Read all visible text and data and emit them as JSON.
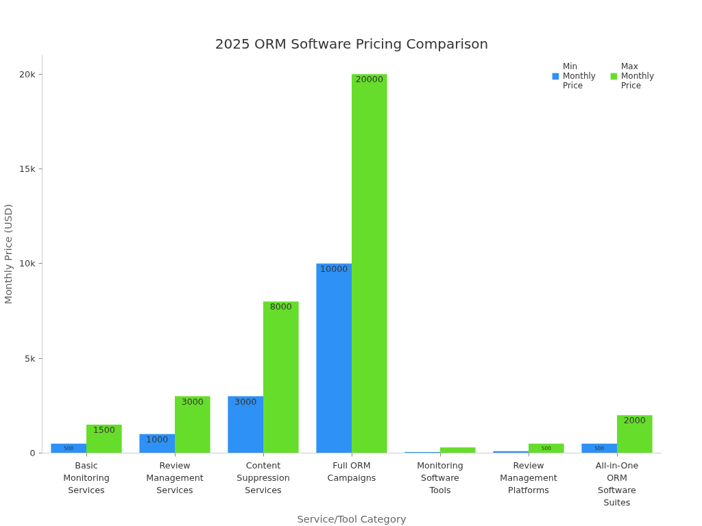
{
  "chart_data": {
    "type": "bar",
    "title": "2025 ORM Software Pricing Comparison",
    "xlabel": "Service/Tool Category",
    "ylabel": "Monthly Price (USD)",
    "categories": [
      "Basic Monitoring Services",
      "Review Management Services",
      "Content Suppression Services",
      "Full ORM Campaigns",
      "Monitoring Software Tools",
      "Review Management Platforms",
      "All-in-One ORM Software Suites"
    ],
    "series": [
      {
        "name": "Min Monthly Price",
        "color": "#2e91f5",
        "values": [
          500,
          1000,
          3000,
          10000,
          50,
          100,
          500
        ],
        "value_labels": [
          "500",
          "1000",
          "3000",
          "10000",
          null,
          null,
          "500"
        ]
      },
      {
        "name": "Max Monthly Price",
        "color": "#66dd2a",
        "values": [
          1500,
          3000,
          8000,
          20000,
          300,
          500,
          2000
        ],
        "value_labels": [
          "1500",
          "3000",
          "8000",
          "20000",
          null,
          "500",
          "2000"
        ]
      }
    ],
    "ylim": [
      0,
      21000
    ],
    "yticks": [
      0,
      {
        "value": 5000,
        "label": "5k"
      },
      {
        "value": 10000,
        "label": "10k"
      },
      {
        "value": 15000,
        "label": "15k"
      },
      {
        "value": 20000,
        "label": "20k"
      }
    ],
    "grid": false,
    "legend": "top right"
  }
}
